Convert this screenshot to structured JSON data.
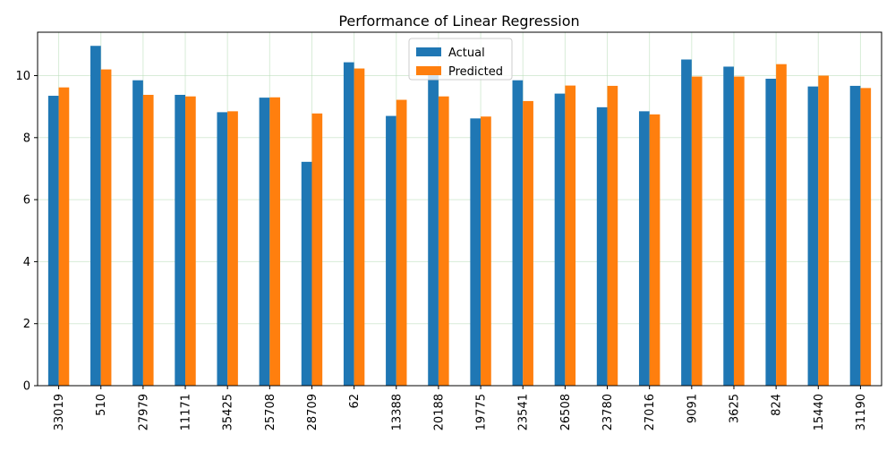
{
  "chart_data": {
    "type": "bar",
    "title": "Performance of Linear Regression",
    "xlabel": "",
    "ylabel": "",
    "categories": [
      "33019",
      "510",
      "27979",
      "11171",
      "35425",
      "25708",
      "28709",
      "62",
      "13388",
      "20188",
      "19775",
      "23541",
      "26508",
      "23780",
      "27016",
      "9091",
      "3625",
      "824",
      "15440",
      "31190"
    ],
    "series": [
      {
        "name": "Actual",
        "color": "#1f77b4",
        "values": [
          9.35,
          10.96,
          9.85,
          9.38,
          8.82,
          9.29,
          7.22,
          10.43,
          8.7,
          10.2,
          8.62,
          9.85,
          9.42,
          8.98,
          8.85,
          10.52,
          10.29,
          9.9,
          9.65,
          9.67
        ]
      },
      {
        "name": "Predicted",
        "color": "#ff7f0e",
        "values": [
          9.62,
          10.2,
          9.38,
          9.33,
          8.85,
          9.3,
          8.78,
          10.23,
          9.22,
          9.33,
          8.68,
          9.18,
          9.68,
          9.67,
          8.75,
          9.97,
          9.97,
          10.37,
          10.0,
          9.6
        ]
      }
    ],
    "ylim": [
      0,
      11.4
    ],
    "yticks": [
      0,
      2,
      4,
      6,
      8,
      10
    ],
    "grid": true,
    "legend": "top-center"
  }
}
